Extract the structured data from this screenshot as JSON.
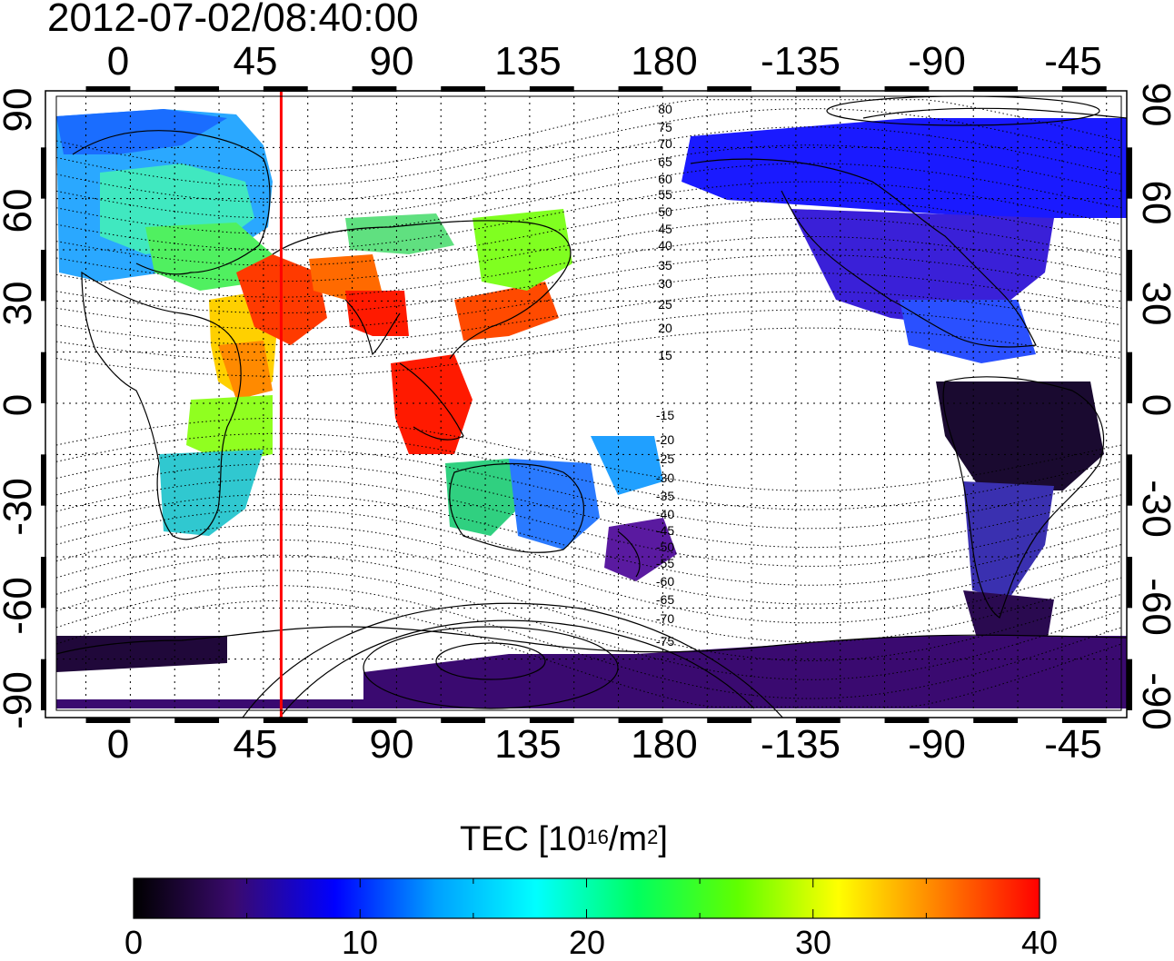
{
  "title": "2012-07-02/08:40:00",
  "top_axis_labels": [
    "0",
    "45",
    "90",
    "135",
    "180",
    "-135",
    "-90",
    "-45"
  ],
  "bottom_axis_labels": [
    "0",
    "45",
    "90",
    "135",
    "180",
    "-135",
    "-90",
    "-45"
  ],
  "left_axis_labels": [
    "90",
    "60",
    "30",
    "0",
    "-30",
    "-60",
    "-90"
  ],
  "right_axis_labels": [
    "90",
    "60",
    "30",
    "0",
    "-30",
    "-60",
    "-90"
  ],
  "contour_labels": [
    "80",
    "75",
    "70",
    "65",
    "60",
    "55",
    "50",
    "45",
    "40",
    "35",
    "30",
    "25",
    "20",
    "15",
    "-15",
    "-20",
    "-25",
    "-30",
    "-35",
    "-40",
    "-45",
    "-50",
    "-55",
    "-60",
    "-65",
    "-70",
    "-75"
  ],
  "colorbar": {
    "title_main": "TEC  [10",
    "title_sup1": "16",
    "title_mid": "/m",
    "title_sup2": "2",
    "title_end": "]",
    "tick_labels": [
      "0",
      "10",
      "20",
      "30",
      "40"
    ],
    "range": [
      0,
      40
    ],
    "colors": [
      "#000000",
      "#3a0a6e",
      "#0000ff",
      "#00a0ff",
      "#00ffff",
      "#00ff60",
      "#60ff00",
      "#ffff00",
      "#ff8000",
      "#ff0000"
    ]
  },
  "map": {
    "marked_longitude": 51,
    "marker_color": "#ff0000",
    "lon_range": [
      -25,
      335
    ],
    "lat_range": [
      -90,
      90
    ]
  }
}
